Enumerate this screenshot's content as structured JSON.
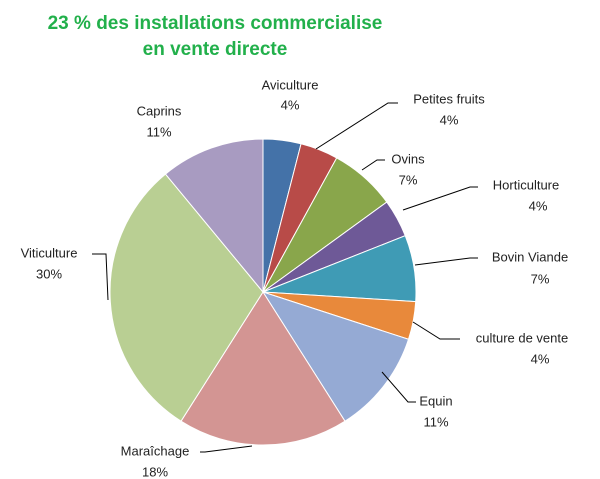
{
  "chart_data": {
    "type": "pie",
    "title": [
      "23 % des installations commercialise",
      "en vente directe"
    ],
    "categories": [
      "Aviculture",
      "Petites fruits",
      "Ovins",
      "Horticulture",
      "Bovin Viande",
      "culture de vente",
      "Equin",
      "Maraîchage",
      "Viticulture",
      "Caprins"
    ],
    "values": [
      4,
      4,
      7,
      4,
      7,
      4,
      11,
      18,
      30,
      11
    ],
    "value_labels": [
      "4%",
      "4%",
      "7%",
      "4%",
      "7%",
      "4%",
      "11%",
      "18%",
      "30%",
      "11%"
    ],
    "colors": [
      "#4472a8",
      "#b84b48",
      "#89a64b",
      "#6e5997",
      "#3f9bb5",
      "#e8893b",
      "#95aad4",
      "#d39593",
      "#b9cf93",
      "#a89bc1"
    ]
  }
}
